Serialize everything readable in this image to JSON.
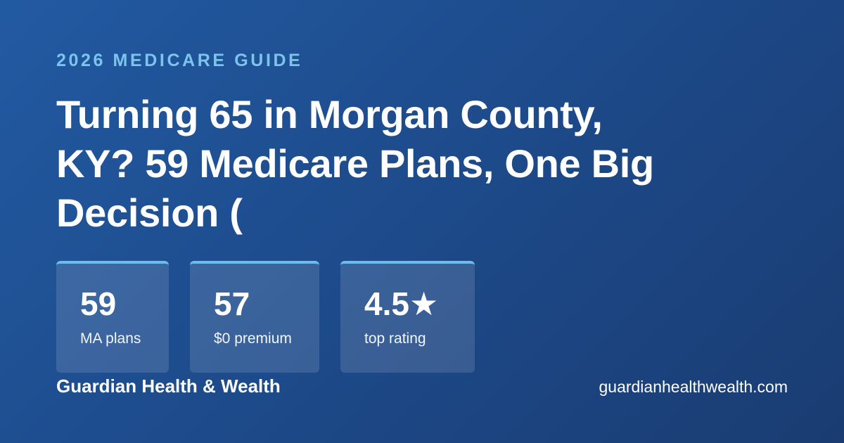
{
  "header": {
    "eyebrow": "2026 MEDICARE GUIDE",
    "title_lines": [
      "Turning 65 in Morgan County,",
      "KY? 59 Medicare Plans, One Big",
      "Decision ("
    ]
  },
  "stats": [
    {
      "value": "59",
      "label": "MA plans"
    },
    {
      "value": "57",
      "label": "$0 premium"
    },
    {
      "value": "4.5★",
      "label": "top rating"
    }
  ],
  "footer": {
    "brand": "Guardian Health & Wealth",
    "url": "guardianhealthwealth.com"
  }
}
